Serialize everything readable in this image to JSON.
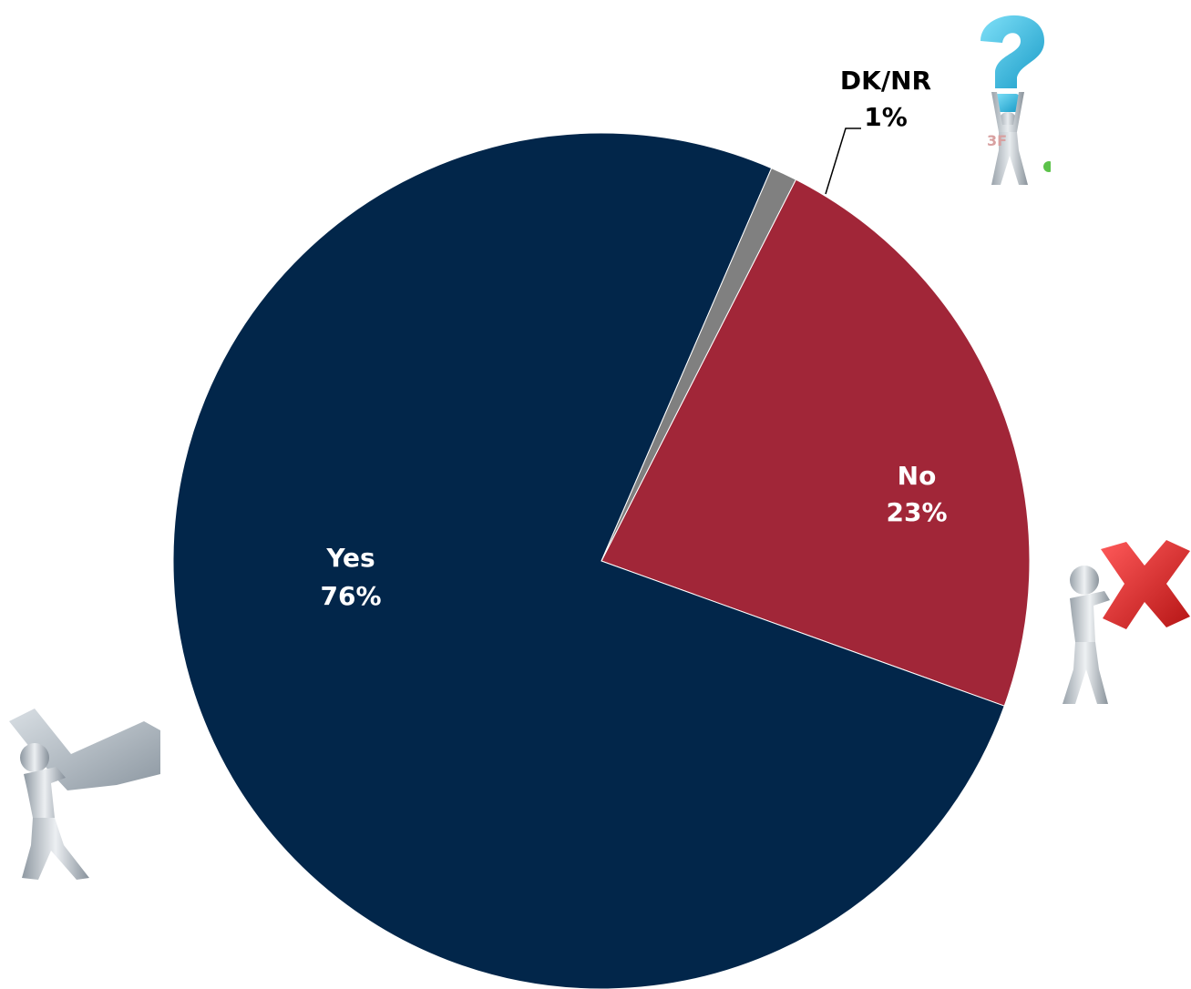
{
  "chart_data": {
    "type": "pie",
    "title": "",
    "start_angle_deg": 27,
    "direction": "clockwise",
    "slices": [
      {
        "label": "No",
        "value": 23,
        "value_label": "23%",
        "color": "#A12638",
        "label_color": "#ffffff"
      },
      {
        "label": "Yes",
        "value": 76,
        "value_label": "76%",
        "color": "#02264A",
        "label_color": "#ffffff"
      },
      {
        "label": "DK/NR",
        "value": 1,
        "value_label": "1%",
        "color": "#808080",
        "label_color": "#000000"
      }
    ],
    "legend": "none"
  },
  "decorations": [
    {
      "name": "person-lifting-question-mark-icon",
      "accent_color": "#29B8E0"
    },
    {
      "name": "person-pushing-red-x-icon",
      "accent_color": "#D42A2A"
    },
    {
      "name": "person-carrying-checkmark-icon",
      "accent_color": "#B8C2CC"
    }
  ]
}
